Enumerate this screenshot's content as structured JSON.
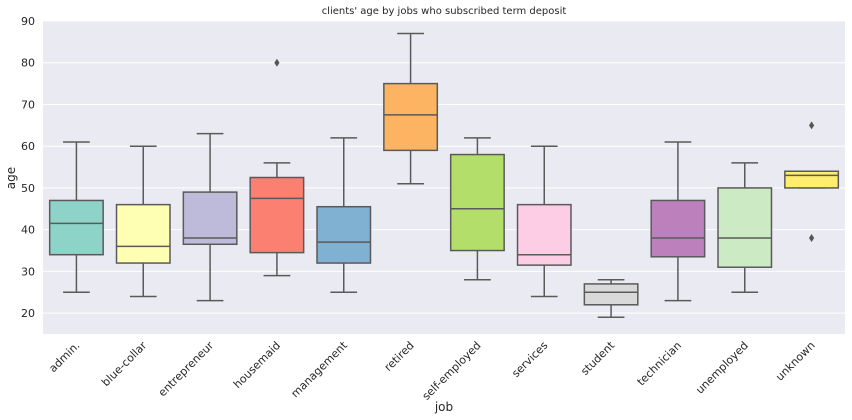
{
  "chart_data": {
    "type": "box",
    "title": "clients' age by jobs who subscribed term deposit",
    "xlabel": "job",
    "ylabel": "age",
    "ylim": [
      15,
      90
    ],
    "yticks": [
      20,
      30,
      40,
      50,
      60,
      70,
      80,
      90
    ],
    "grid": true,
    "legend": "none",
    "categories": [
      "admin.",
      "blue-collar",
      "entrepreneur",
      "housemaid",
      "management",
      "retired",
      "self-employed",
      "services",
      "student",
      "technician",
      "unemployed",
      "unknown"
    ],
    "boxes": [
      {
        "category": "admin.",
        "whisker_low": 25,
        "q1": 34,
        "median": 41.5,
        "q3": 47,
        "whisker_high": 61,
        "outliers": [],
        "color": "#8dd3c7"
      },
      {
        "category": "blue-collar",
        "whisker_low": 24,
        "q1": 32,
        "median": 36,
        "q3": 46,
        "whisker_high": 60,
        "outliers": [],
        "color": "#ffffb3"
      },
      {
        "category": "entrepreneur",
        "whisker_low": 23,
        "q1": 36.5,
        "median": 38,
        "q3": 49,
        "whisker_high": 63,
        "outliers": [],
        "color": "#bebada"
      },
      {
        "category": "housemaid",
        "whisker_low": 29,
        "q1": 34.5,
        "median": 47.5,
        "q3": 52.5,
        "whisker_high": 56,
        "outliers": [
          80
        ],
        "color": "#fb8072"
      },
      {
        "category": "management",
        "whisker_low": 25,
        "q1": 32,
        "median": 37,
        "q3": 45.5,
        "whisker_high": 62,
        "outliers": [],
        "color": "#80b1d3"
      },
      {
        "category": "retired",
        "whisker_low": 51,
        "q1": 59,
        "median": 67.5,
        "q3": 75,
        "whisker_high": 87,
        "outliers": [],
        "color": "#fdb462"
      },
      {
        "category": "self-employed",
        "whisker_low": 28,
        "q1": 35,
        "median": 45,
        "q3": 58,
        "whisker_high": 62,
        "outliers": [],
        "color": "#b3de69"
      },
      {
        "category": "services",
        "whisker_low": 24,
        "q1": 31.5,
        "median": 34,
        "q3": 46,
        "whisker_high": 60,
        "outliers": [],
        "color": "#fccde5"
      },
      {
        "category": "student",
        "whisker_low": 19,
        "q1": 22,
        "median": 25,
        "q3": 27,
        "whisker_high": 28,
        "outliers": [],
        "color": "#d9d9d9"
      },
      {
        "category": "technician",
        "whisker_low": 23,
        "q1": 33.5,
        "median": 38,
        "q3": 47,
        "whisker_high": 61,
        "outliers": [],
        "color": "#bc80bd"
      },
      {
        "category": "unemployed",
        "whisker_low": 25,
        "q1": 31,
        "median": 38,
        "q3": 50,
        "whisker_high": 56,
        "outliers": [],
        "color": "#ccebc5"
      },
      {
        "category": "unknown",
        "whisker_low": 50,
        "q1": 50,
        "median": 53,
        "q3": 54,
        "whisker_high": 54,
        "outliers": [
          38,
          65
        ],
        "color": "#ffed6f"
      }
    ],
    "colors": {
      "background": "#eaeaf2",
      "grid": "#ffffff",
      "line": "#5a5a5a"
    }
  }
}
